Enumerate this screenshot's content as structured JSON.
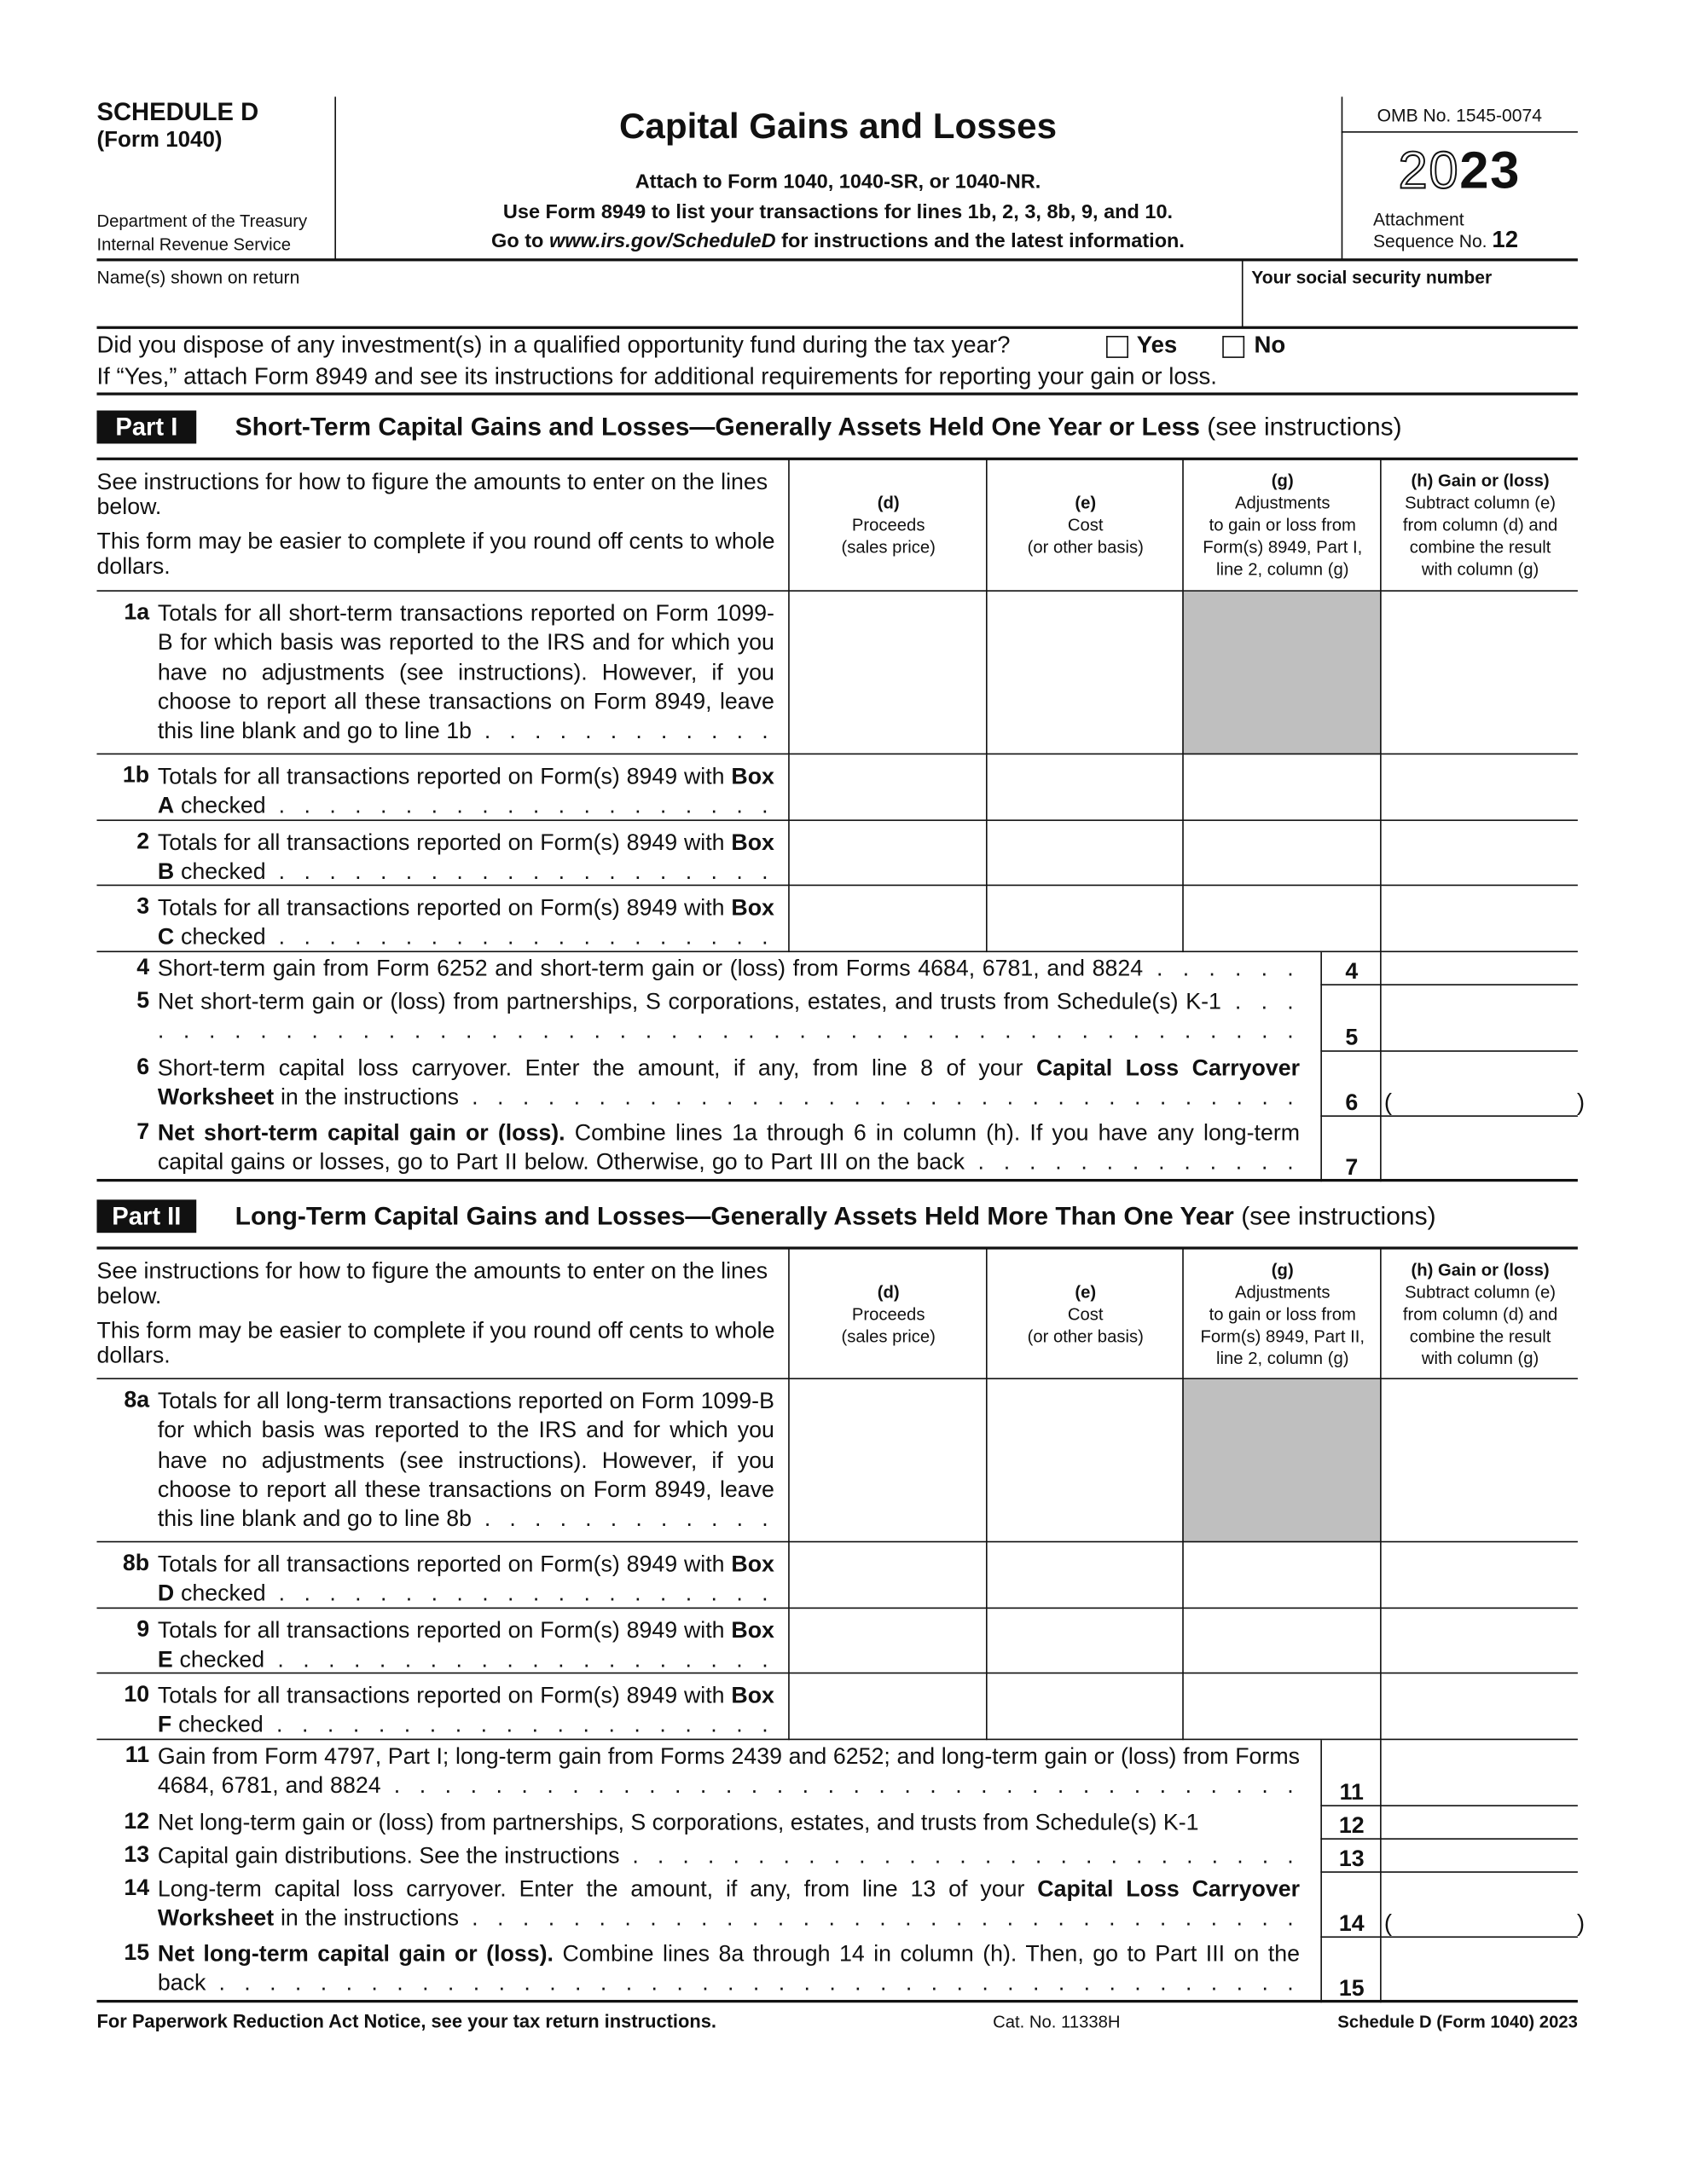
{
  "header": {
    "schedule": "SCHEDULE D",
    "form": "(Form 1040)",
    "dept": "Department of the Treasury",
    "irs": "Internal Revenue Service",
    "title": "Capital Gains and Losses",
    "attach_lines": [
      "Attach to Form 1040, 1040-SR, or 1040-NR.",
      "Use Form 8949 to list your transactions for lines 1b, 2, 3, 8b, 9, and 10."
    ],
    "goto_prefix": "Go to ",
    "goto_url": "www.irs.gov/ScheduleD",
    "goto_suffix": " for instructions and the latest information.",
    "omb": "OMB No. 1545-0074",
    "year_outline": "20",
    "year_bold": "23",
    "attachment": "Attachment",
    "sequence": "Sequence No.",
    "sequence_no": "12"
  },
  "identity": {
    "name_label": "Name(s) shown on return",
    "name_value": "",
    "ssn_label": "Your social security number",
    "ssn_value": ""
  },
  "question": {
    "text": "Did you dispose of any investment(s) in a qualified opportunity fund during the tax year?",
    "yes": "Yes",
    "no": "No",
    "yes_checked": false,
    "no_checked": false,
    "note": "If “Yes,” attach Form 8949 and see its instructions for additional requirements for reporting your gain or loss."
  },
  "part1": {
    "badge": "Part I",
    "title": "Short-Term Capital Gains and Losses—Generally Assets Held One Year or Less",
    "see": "(see instructions)",
    "intro": [
      "See instructions for how to figure the amounts to enter on the lines below.",
      "This form may be easier to complete if you round off cents to whole dollars."
    ],
    "columns": [
      {
        "letter": "(d)",
        "label": [
          "Proceeds",
          "(sales price)"
        ]
      },
      {
        "letter": "(e)",
        "label": [
          "Cost",
          "(or other basis)"
        ]
      },
      {
        "letter": "(g)",
        "label": [
          "Adjustments",
          "to gain or loss from",
          "Form(s) 8949, Part I,",
          "line 2, column (g)"
        ]
      },
      {
        "letter": "(h) Gain or (loss)",
        "label": [
          "Subtract column (e)",
          "from column (d) and",
          "combine the result",
          "with column (g)"
        ]
      }
    ],
    "rows": [
      {
        "num": "1a",
        "type": "grid",
        "shade_g": true,
        "text": [
          {
            "t": "Totals for all short-term transactions reported on Form 1099-B for which basis was reported to the IRS and for which you have no adjustments (see instructions). However, if you choose to report all these transactions on Form 8949, leave this line blank and go to line 1b"
          }
        ],
        "leader": true
      },
      {
        "num": "1b",
        "type": "grid",
        "text": [
          {
            "t": "Totals for all transactions reported on Form(s) 8949 with "
          },
          {
            "t": "Box A",
            "b": true
          },
          {
            "t": " checked"
          }
        ],
        "leader": true
      },
      {
        "num": "2",
        "type": "grid",
        "text": [
          {
            "t": "Totals for all transactions reported on Form(s) 8949 with "
          },
          {
            "t": "Box B",
            "b": true
          },
          {
            "t": " checked"
          }
        ],
        "leader": true
      },
      {
        "num": "3",
        "type": "grid",
        "text": [
          {
            "t": "Totals for all transactions reported on Form(s) 8949 with "
          },
          {
            "t": "Box C",
            "b": true
          },
          {
            "t": " checked"
          }
        ],
        "leader": true
      },
      {
        "num": "4",
        "type": "line",
        "box": "4",
        "text": [
          {
            "t": "Short-term gain from Form 6252 and short-term gain or (loss) from Forms 4684, 6781, and 8824"
          }
        ],
        "leader": true
      },
      {
        "num": "5",
        "type": "line",
        "box": "5",
        "text": [
          {
            "t": "Net short-term gain or (loss) from partnerships, S corporations, estates, and trusts from Schedule(s) K-1"
          }
        ],
        "leader": true
      },
      {
        "num": "6",
        "type": "line",
        "box": "6",
        "paren": true,
        "text": [
          {
            "t": "Short-term capital loss carryover. Enter the amount, if any, from line 8 of your "
          },
          {
            "t": "Capital Loss Carryover Worksheet",
            "b": true
          },
          {
            "t": " in the instructions"
          }
        ],
        "leader": true
      },
      {
        "num": "7",
        "type": "line",
        "box": "7",
        "last": true,
        "text": [
          {
            "t": "Net short-term capital gain or (loss).",
            "b": true
          },
          {
            "t": "  Combine lines 1a through 6 in column (h). If you have any long-term capital gains or losses, go to Part II below. Otherwise, go to Part III on the back"
          }
        ],
        "leader": true
      }
    ]
  },
  "part2": {
    "badge": "Part II",
    "title": "Long-Term Capital Gains and Losses—Generally Assets Held More Than One Year",
    "see": "(see instructions)",
    "intro": [
      "See instructions for how to figure the amounts to enter on the lines below.",
      "This form may be easier to complete if you round off cents to whole dollars."
    ],
    "columns": [
      {
        "letter": "(d)",
        "label": [
          "Proceeds",
          "(sales price)"
        ]
      },
      {
        "letter": "(e)",
        "label": [
          "Cost",
          "(or other basis)"
        ]
      },
      {
        "letter": "(g)",
        "label": [
          "Adjustments",
          "to gain or loss from",
          "Form(s) 8949, Part II,",
          "line 2, column (g)"
        ]
      },
      {
        "letter": "(h) Gain or (loss)",
        "label": [
          "Subtract column (e)",
          "from column (d) and",
          "combine the result",
          "with column (g)"
        ]
      }
    ],
    "rows": [
      {
        "num": "8a",
        "type": "grid",
        "shade_g": true,
        "text": [
          {
            "t": "Totals for all long-term transactions reported on Form 1099-B for which basis was reported to the IRS and for which you have no adjustments (see instructions). However, if you choose to report all these transactions on Form 8949, leave this line blank and go to line 8b"
          }
        ],
        "leader": true
      },
      {
        "num": "8b",
        "type": "grid",
        "text": [
          {
            "t": "Totals for all transactions reported on Form(s) 8949 with "
          },
          {
            "t": "Box D",
            "b": true
          },
          {
            "t": " checked"
          }
        ],
        "leader": true
      },
      {
        "num": "9",
        "type": "grid",
        "text": [
          {
            "t": "Totals for all transactions reported on Form(s) 8949 with "
          },
          {
            "t": "Box E",
            "b": true
          },
          {
            "t": " checked"
          }
        ],
        "leader": true
      },
      {
        "num": "10",
        "type": "grid",
        "text": [
          {
            "t": "Totals for all transactions reported on Form(s) 8949 with "
          },
          {
            "t": "Box F",
            "b": true
          },
          {
            "t": " checked"
          }
        ],
        "leader": true
      },
      {
        "num": "11",
        "type": "line",
        "box": "11",
        "text": [
          {
            "t": "Gain from Form 4797, Part I; long-term gain from Forms 2439 and 6252; and long-term gain or (loss) from Forms 4684, 6781, and 8824"
          }
        ],
        "leader": true
      },
      {
        "num": "12",
        "type": "line",
        "box": "12",
        "text": [
          {
            "t": "Net long-term gain or (loss) from partnerships, S corporations, estates, and trusts from Schedule(s) K-1"
          }
        ],
        "leader": false
      },
      {
        "num": "13",
        "type": "line",
        "box": "13",
        "text": [
          {
            "t": "Capital gain distributions. See the instructions"
          }
        ],
        "leader": true
      },
      {
        "num": "14",
        "type": "line",
        "box": "14",
        "paren": true,
        "text": [
          {
            "t": "Long-term capital loss carryover. Enter the amount, if any, from line 13 of your "
          },
          {
            "t": "Capital Loss Carryover Worksheet",
            "b": true
          },
          {
            "t": " in the instructions"
          }
        ],
        "leader": true
      },
      {
        "num": "15",
        "type": "line",
        "box": "15",
        "last": true,
        "text": [
          {
            "t": "Net long-term capital gain or (loss).",
            "b": true
          },
          {
            "t": "  Combine lines 8a through 14 in column (h). Then, go to Part III on the back"
          }
        ],
        "leader": true
      }
    ]
  },
  "footer": {
    "paperwork": "For Paperwork Reduction Act Notice, see your tax return instructions.",
    "cat": "Cat. No. 11338H",
    "form_id": "Schedule D (Form 1040) 2023"
  }
}
